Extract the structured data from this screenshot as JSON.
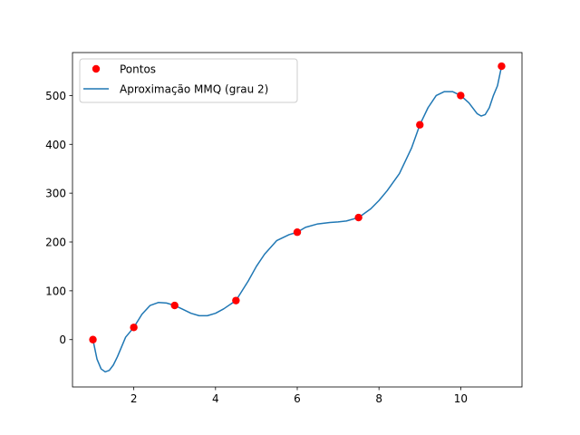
{
  "chart_data": {
    "type": "scatter",
    "title": "",
    "xlabel": "",
    "ylabel": "",
    "xlim": [
      0.5,
      11.5
    ],
    "ylim": [
      -97,
      588
    ],
    "x_ticks": [
      2,
      4,
      6,
      8,
      10
    ],
    "y_ticks": [
      0,
      100,
      200,
      300,
      400,
      500
    ],
    "x_tick_labels": [
      "2",
      "4",
      "6",
      "8",
      "10"
    ],
    "y_tick_labels": [
      "0",
      "100",
      "200",
      "300",
      "400",
      "500"
    ],
    "grid": false,
    "legend_position": "top-left",
    "series": [
      {
        "name": "Pontos",
        "kind": "scatter",
        "color": "#ff0000",
        "x": [
          1,
          2,
          3,
          4.5,
          6,
          7.5,
          9,
          10,
          11
        ],
        "y": [
          0,
          25,
          70,
          80,
          220,
          250,
          440,
          500,
          560
        ]
      },
      {
        "name": "Aproximação MMQ (grau 2)",
        "kind": "line",
        "color": "#1f77b4",
        "x": [
          1,
          1.1,
          1.2,
          1.3,
          1.4,
          1.5,
          1.6,
          1.7,
          1.8,
          1.9,
          2,
          2.2,
          2.4,
          2.6,
          2.8,
          3,
          3.2,
          3.4,
          3.6,
          3.8,
          4,
          4.2,
          4.5,
          4.8,
          5,
          5.2,
          5.5,
          5.8,
          6,
          6.2,
          6.5,
          6.8,
          7,
          7.2,
          7.5,
          7.8,
          8,
          8.2,
          8.5,
          8.8,
          9,
          9.2,
          9.4,
          9.6,
          9.8,
          10,
          10.2,
          10.4,
          10.5,
          10.6,
          10.7,
          10.8,
          10.9,
          11
        ],
        "y": [
          0,
          -40,
          -60,
          -66,
          -63,
          -52,
          -35,
          -15,
          5,
          15,
          25,
          52,
          70,
          76,
          75,
          70,
          62,
          54,
          49,
          49,
          54,
          63,
          80,
          120,
          150,
          175,
          203,
          215,
          220,
          230,
          237,
          240,
          241,
          243,
          250,
          268,
          285,
          305,
          340,
          393,
          440,
          475,
          500,
          508,
          508,
          500,
          485,
          463,
          458,
          461,
          475,
          500,
          520,
          560
        ]
      }
    ]
  }
}
